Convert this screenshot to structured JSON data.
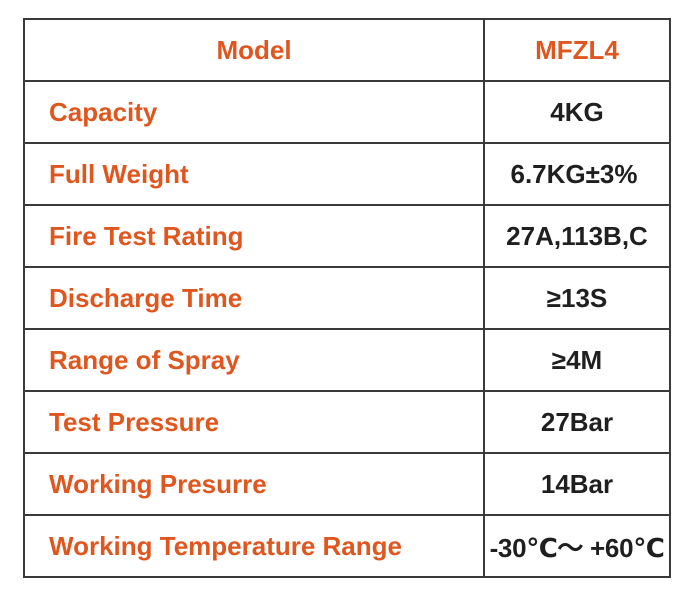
{
  "header": {
    "label": "Model",
    "value": "MFZL4"
  },
  "rows": [
    {
      "label": "Capacity",
      "value": "4KG"
    },
    {
      "label": "Full Weight",
      "value": "6.7KG±3%"
    },
    {
      "label": "Fire Test Rating",
      "value": "27A,113B,C"
    },
    {
      "label": "Discharge Time",
      "value": "≥13S"
    },
    {
      "label": "Range of Spray",
      "value": "≥4M"
    },
    {
      "label": "Test Pressure",
      "value": "27Bar"
    },
    {
      "label": "Working Presurre",
      "value": "14Bar"
    },
    {
      "label": "Working Temperature Range",
      "value": "-30℃～ +60℃"
    }
  ],
  "colors": {
    "label": "#e0561f",
    "value": "#1f1f1f",
    "border": "#3a3a3a"
  }
}
